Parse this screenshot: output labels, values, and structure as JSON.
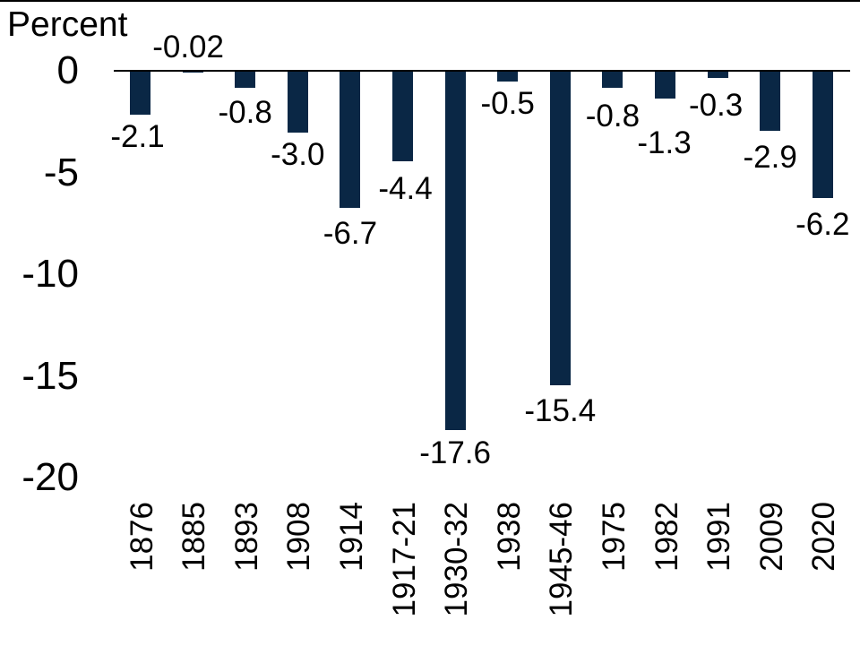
{
  "chart_data": {
    "type": "bar",
    "axis_title": "Percent",
    "categories": [
      "1876",
      "1885",
      "1893",
      "1908",
      "1914",
      "1917-21",
      "1930-32",
      "1938",
      "1945-46",
      "1975",
      "1982",
      "1991",
      "2009",
      "2020"
    ],
    "values": [
      -2.1,
      -0.02,
      -0.8,
      -3.0,
      -6.7,
      -4.4,
      -17.6,
      -0.5,
      -15.4,
      -0.8,
      -1.3,
      -0.3,
      -2.9,
      -6.2
    ],
    "value_labels": [
      "-2.1",
      "-0.02",
      "-0.8",
      "-3.0",
      "-6.7",
      "-4.4",
      "-17.6",
      "-0.5",
      "-15.4",
      "-0.8",
      "-1.3",
      "-0.3",
      "-2.9",
      "-6.2"
    ],
    "yticks": [
      0,
      -5,
      -10,
      -15,
      -20
    ],
    "ytick_labels": [
      "0",
      "-5",
      "-10",
      "-15",
      "-20"
    ],
    "ylim": [
      -20,
      0
    ],
    "xlabel": "",
    "ylabel": "Percent",
    "grid": false,
    "legend": "none",
    "bar_color": "#0a2745",
    "axis_line_color": "#000000",
    "text_color": "#000000",
    "background_color": "#ffffff"
  }
}
